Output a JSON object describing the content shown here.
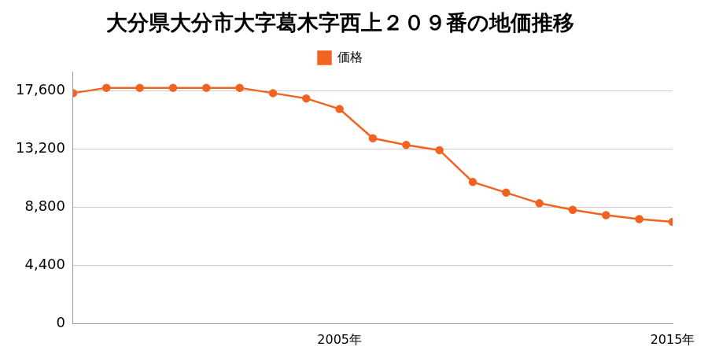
{
  "chart_data": {
    "type": "line",
    "title": "大分県大分市大字葛木字西上２０９番の地価推移",
    "categories": [
      null,
      null,
      null,
      null,
      null,
      null,
      null,
      null,
      "2005年",
      null,
      null,
      null,
      null,
      null,
      null,
      null,
      null,
      null,
      "2015年"
    ],
    "series": [
      {
        "name": "価格",
        "color": "#f26322",
        "marker": "circle",
        "values": [
          17400,
          17800,
          17800,
          17800,
          17800,
          17800,
          17400,
          17000,
          16200,
          14000,
          13500,
          13100,
          10700,
          9900,
          9100,
          8600,
          8200,
          7900,
          7700
        ]
      }
    ],
    "ylim": [
      0,
      19000
    ],
    "yticks": [
      0,
      {
        "value": 4400,
        "label": "4,400"
      },
      {
        "value": 8800,
        "label": "8,800"
      },
      {
        "value": 13200,
        "label": "13,200"
      },
      {
        "value": 17600,
        "label": "17,600"
      }
    ],
    "grid": true,
    "legend": "top"
  }
}
